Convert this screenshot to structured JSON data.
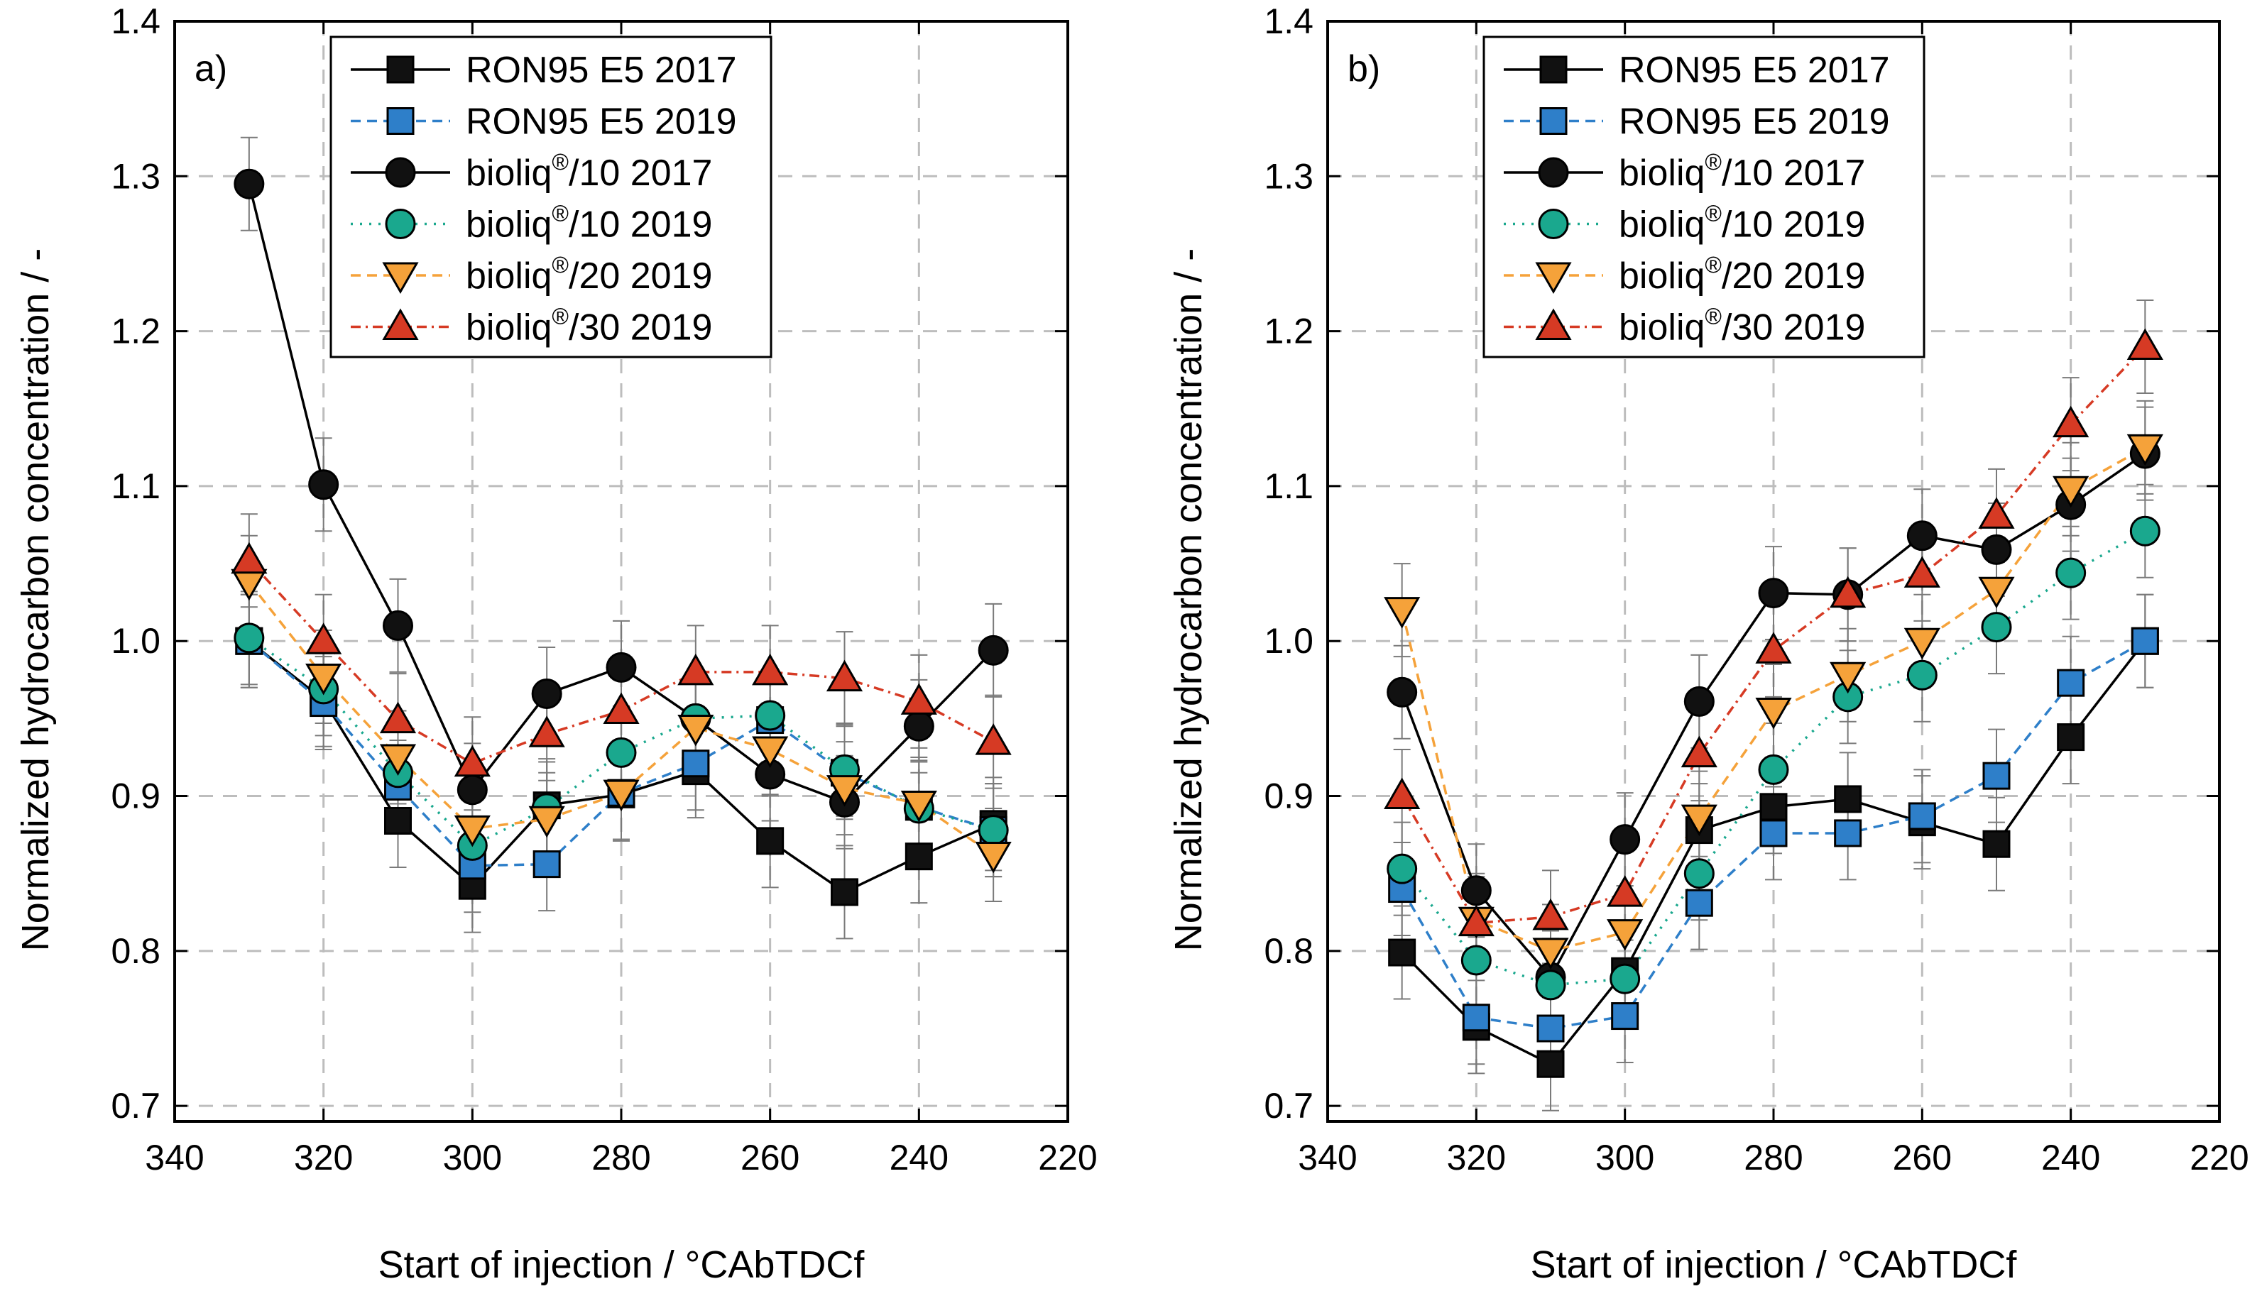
{
  "chart_data": [
    {
      "panel": "a)",
      "type": "line",
      "xlabel": "Start of injection / °CAbTDCf",
      "ylabel": "Normalized hydrocarbon concentration / -",
      "xlim": [
        340,
        220
      ],
      "ylim": [
        0.69,
        1.4
      ],
      "xticks": [
        "340",
        "320",
        "300",
        "280",
        "260",
        "240",
        "220"
      ],
      "yticks": [
        "0.7",
        "0.8",
        "0.9",
        "1.0",
        "1.1",
        "1.2",
        "1.3",
        "1.4"
      ],
      "grid": true,
      "legend_position": "top-right",
      "x": [
        330,
        320,
        310,
        300,
        290,
        280,
        270,
        260,
        250,
        240,
        230
      ],
      "series": [
        {
          "name": "RON95 E5 2017",
          "sup": "",
          "name_suffix": "",
          "marker": "square",
          "fill": "#111111",
          "line_color": "#000000",
          "dash": "",
          "error": 0.03,
          "values": [
            1.0,
            0.962,
            0.884,
            0.842,
            0.894,
            0.901,
            0.916,
            0.871,
            0.838,
            0.861,
            0.882
          ]
        },
        {
          "name": "RON95 E5 2019",
          "sup": "",
          "name_suffix": "",
          "marker": "square",
          "fill": "#2e7fc9",
          "line_color": "#2e7fc9",
          "dash": "14,9",
          "error": 0.03,
          "values": [
            1.0,
            0.96,
            0.906,
            0.855,
            0.856,
            0.902,
            0.921,
            0.949,
            0.915,
            0.893,
            0.878
          ]
        },
        {
          "name": "bioliq",
          "sup": "®",
          "name_suffix": "/10 2017",
          "marker": "circle",
          "fill": "#111111",
          "line_color": "#000000",
          "dash": "",
          "error": 0.03,
          "values": [
            1.295,
            1.101,
            1.01,
            0.904,
            0.966,
            0.983,
            0.95,
            0.914,
            0.896,
            0.945,
            0.994
          ]
        },
        {
          "name": "bioliq",
          "sup": "®",
          "name_suffix": "/10 2019",
          "marker": "circle",
          "fill": "#1aa88e",
          "line_color": "#1aa88e",
          "dash": "3,10",
          "error": 0.03,
          "values": [
            1.002,
            0.969,
            0.915,
            0.868,
            0.892,
            0.928,
            0.95,
            0.952,
            0.917,
            0.892,
            0.878
          ]
        },
        {
          "name": "bioliq",
          "sup": "®",
          "name_suffix": "/20 2019",
          "marker": "triangle-down",
          "fill": "#f5a23a",
          "line_color": "#f5a23a",
          "dash": "14,9",
          "error": 0.03,
          "values": [
            1.038,
            0.977,
            0.925,
            0.879,
            0.885,
            0.902,
            0.944,
            0.93,
            0.905,
            0.895,
            0.862
          ]
        },
        {
          "name": "bioliq",
          "sup": "®",
          "name_suffix": "/30 2019",
          "marker": "triangle-up",
          "fill": "#d63a24",
          "line_color": "#d63a24",
          "dash": "14,7,3,7",
          "error": 0.03,
          "values": [
            1.052,
            1.0,
            0.949,
            0.921,
            0.94,
            0.955,
            0.98,
            0.98,
            0.976,
            0.961,
            0.935
          ]
        }
      ]
    },
    {
      "panel": "b)",
      "type": "line",
      "xlabel": "Start of injection / °CAbTDCf",
      "ylabel": "Normalized hydrocarbon concentration / -",
      "xlim": [
        340,
        220
      ],
      "ylim": [
        0.69,
        1.4
      ],
      "xticks": [
        "340",
        "320",
        "300",
        "280",
        "260",
        "240",
        "220"
      ],
      "yticks": [
        "0.7",
        "0.8",
        "0.9",
        "1.0",
        "1.1",
        "1.2",
        "1.3",
        "1.4"
      ],
      "grid": true,
      "legend_position": "top-right",
      "x": [
        330,
        320,
        310,
        300,
        290,
        280,
        270,
        260,
        250,
        240,
        230
      ],
      "series": [
        {
          "name": "RON95 E5 2017",
          "sup": "",
          "name_suffix": "",
          "marker": "square",
          "fill": "#111111",
          "line_color": "#000000",
          "dash": "",
          "error": 0.03,
          "values": [
            0.799,
            0.751,
            0.727,
            0.787,
            0.878,
            0.893,
            0.898,
            0.883,
            0.869,
            0.938,
            1.0
          ]
        },
        {
          "name": "RON95 E5 2019",
          "sup": "",
          "name_suffix": "",
          "marker": "square",
          "fill": "#2e7fc9",
          "line_color": "#2e7fc9",
          "dash": "14,9",
          "error": 0.03,
          "values": [
            0.84,
            0.757,
            0.75,
            0.758,
            0.831,
            0.876,
            0.876,
            0.887,
            0.913,
            0.973,
            1.0
          ]
        },
        {
          "name": "bioliq",
          "sup": "®",
          "name_suffix": "/10 2017",
          "marker": "circle",
          "fill": "#111111",
          "line_color": "#000000",
          "dash": "",
          "error": 0.03,
          "values": [
            0.967,
            0.839,
            0.783,
            0.872,
            0.961,
            1.031,
            1.03,
            1.068,
            1.059,
            1.088,
            1.121
          ]
        },
        {
          "name": "bioliq",
          "sup": "®",
          "name_suffix": "/10 2019",
          "marker": "circle",
          "fill": "#1aa88e",
          "line_color": "#1aa88e",
          "dash": "3,10",
          "error": 0.03,
          "values": [
            0.853,
            0.794,
            0.778,
            0.782,
            0.85,
            0.917,
            0.964,
            0.978,
            1.009,
            1.044,
            1.071
          ]
        },
        {
          "name": "bioliq",
          "sup": "®",
          "name_suffix": "/20 2019",
          "marker": "triangle-down",
          "fill": "#f5a23a",
          "line_color": "#f5a23a",
          "dash": "14,9",
          "error": 0.03,
          "values": [
            1.02,
            0.82,
            0.8,
            0.812,
            0.886,
            0.955,
            0.978,
            1.0,
            1.033,
            1.098,
            1.125
          ]
        },
        {
          "name": "bioliq",
          "sup": "®",
          "name_suffix": "/30 2019",
          "marker": "triangle-up",
          "fill": "#d63a24",
          "line_color": "#d63a24",
          "dash": "14,7,3,7",
          "error": 0.03,
          "values": [
            0.9,
            0.818,
            0.822,
            0.837,
            0.927,
            0.994,
            1.03,
            1.043,
            1.081,
            1.14,
            1.19
          ]
        }
      ]
    }
  ]
}
